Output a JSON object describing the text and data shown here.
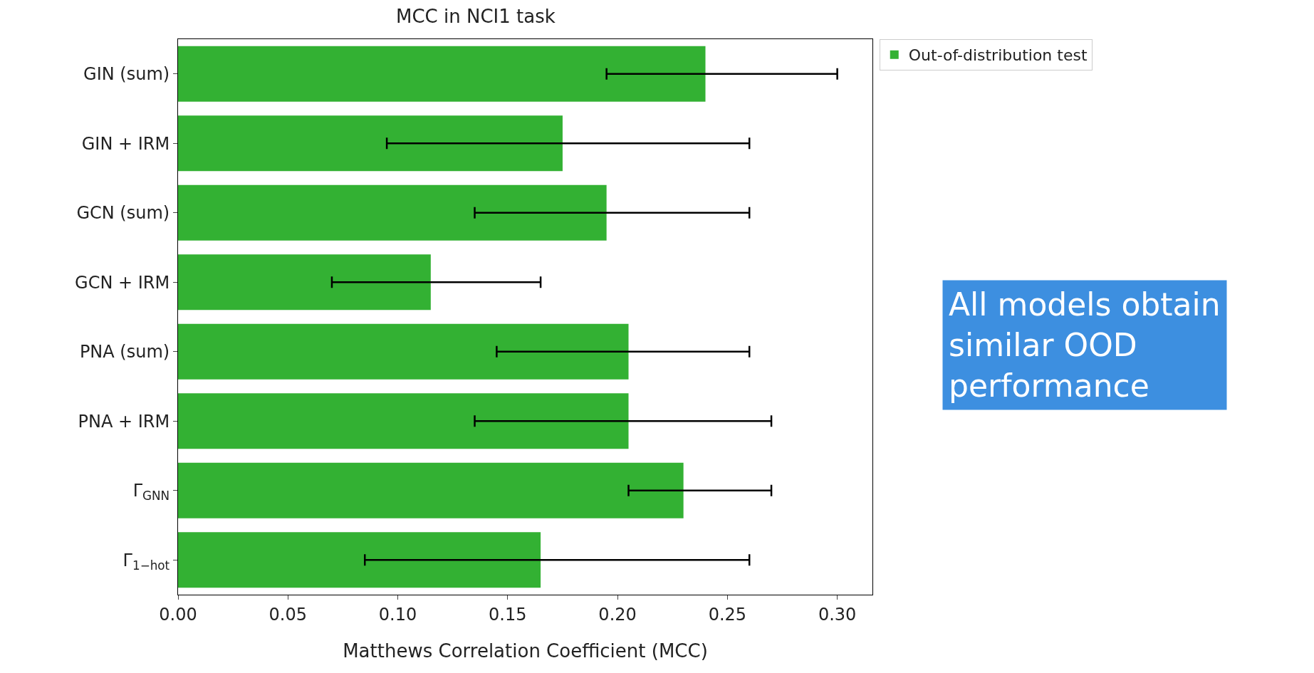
{
  "chart_data": {
    "type": "bar",
    "orientation": "horizontal",
    "title": "MCC in NCI1 task",
    "xlabel": "Matthews Correlation Coefficient (MCC)",
    "categories": [
      "GIN (sum)",
      "GIN + IRM",
      "GCN (sum)",
      "GCN + IRM",
      "PNA (sum)",
      "PNA + IRM",
      "Γ$_{GNN}$",
      "Γ$_{1−hot}$"
    ],
    "series": [
      {
        "name": "Out-of-distribution test",
        "color": "#33b133",
        "values": [
          0.24,
          0.175,
          0.195,
          0.115,
          0.205,
          0.205,
          0.23,
          0.165
        ],
        "errors": [
          [
            0.195,
            0.3
          ],
          [
            0.095,
            0.26
          ],
          [
            0.135,
            0.26
          ],
          [
            0.07,
            0.165
          ],
          [
            0.145,
            0.26
          ],
          [
            0.135,
            0.27
          ],
          [
            0.205,
            0.27
          ],
          [
            0.085,
            0.26
          ]
        ]
      }
    ],
    "xlim": [
      0,
      0.316
    ],
    "xticks": [
      {
        "value": 0,
        "label": "0.00"
      },
      {
        "value": 0.05,
        "label": "0.05"
      },
      {
        "value": 0.1,
        "label": "0.10"
      },
      {
        "value": 0.15,
        "label": "0.15"
      },
      {
        "value": 0.2,
        "label": "0.20"
      },
      {
        "value": 0.25,
        "label": "0.25"
      },
      {
        "value": 0.3,
        "label": "0.30"
      }
    ],
    "legend": "top right",
    "grid": false,
    "annotations": [
      "All models obtain similar OOD performance"
    ]
  }
}
